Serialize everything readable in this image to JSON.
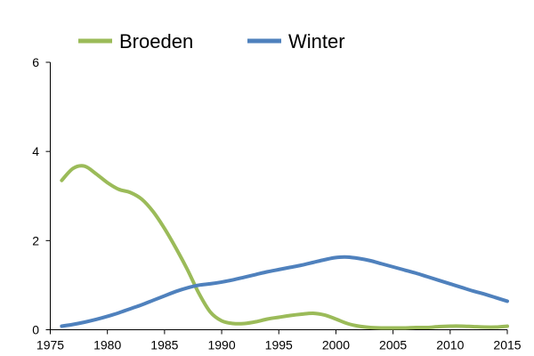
{
  "chart_data": {
    "type": "line",
    "title": "",
    "xlabel": "",
    "ylabel": "",
    "xlim": [
      1975,
      2015
    ],
    "ylim": [
      0,
      6
    ],
    "grid": false,
    "legend_position": "top",
    "x_ticks": [
      1975,
      1980,
      1985,
      1990,
      1995,
      2000,
      2005,
      2010,
      2015
    ],
    "y_ticks": [
      0,
      2,
      4,
      6
    ],
    "x": [
      1976,
      1977,
      1978,
      1979,
      1980,
      1981,
      1982,
      1983,
      1984,
      1985,
      1986,
      1987,
      1988,
      1989,
      1990,
      1991,
      1992,
      1993,
      1994,
      1995,
      1996,
      1997,
      1998,
      1999,
      2000,
      2001,
      2002,
      2003,
      2004,
      2005,
      2006,
      2007,
      2008,
      2009,
      2010,
      2011,
      2012,
      2013,
      2014,
      2015
    ],
    "series": [
      {
        "name": "Broeden",
        "color": "#9bbb59",
        "values": [
          3.35,
          3.62,
          3.67,
          3.5,
          3.3,
          3.15,
          3.08,
          2.93,
          2.65,
          2.27,
          1.83,
          1.35,
          0.82,
          0.4,
          0.2,
          0.14,
          0.14,
          0.18,
          0.24,
          0.28,
          0.32,
          0.35,
          0.37,
          0.33,
          0.24,
          0.14,
          0.08,
          0.05,
          0.04,
          0.04,
          0.04,
          0.05,
          0.05,
          0.07,
          0.08,
          0.08,
          0.07,
          0.06,
          0.06,
          0.08
        ]
      },
      {
        "name": "Winter",
        "color": "#4f81bd",
        "values": [
          0.08,
          0.12,
          0.17,
          0.23,
          0.3,
          0.38,
          0.47,
          0.56,
          0.66,
          0.76,
          0.86,
          0.94,
          1.0,
          1.03,
          1.07,
          1.12,
          1.18,
          1.24,
          1.3,
          1.35,
          1.4,
          1.45,
          1.51,
          1.57,
          1.62,
          1.63,
          1.6,
          1.55,
          1.48,
          1.41,
          1.34,
          1.27,
          1.19,
          1.11,
          1.03,
          0.95,
          0.87,
          0.8,
          0.72,
          0.64
        ]
      }
    ]
  }
}
